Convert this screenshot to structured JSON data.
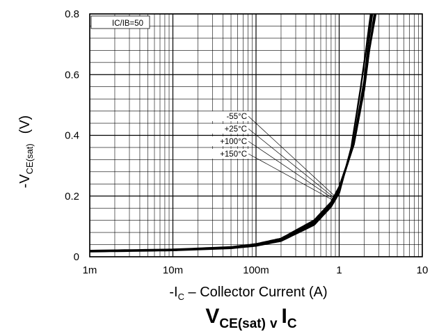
{
  "chart_data": {
    "type": "line",
    "title": "VCE(sat) v IC",
    "title_parts": {
      "main": "V",
      "sub": "CE(sat)",
      "mid": "v",
      "main2": "I",
      "sub2": "C"
    },
    "xlabel": "-IC – Collector Current (A)",
    "xlabel_parts": {
      "pre": "-I",
      "sub": "C",
      "post": " – Collector Current (A)"
    },
    "ylabel": "-VCE(sat) (V)",
    "ylabel_parts": {
      "pre": "-V",
      "sub": "CE(sat)",
      "post": "(V)"
    },
    "x_scale": "log",
    "xlim": [
      0.001,
      10
    ],
    "ylim": [
      0,
      0.8
    ],
    "x_ticks": [
      {
        "value": 0.001,
        "label": "1m"
      },
      {
        "value": 0.01,
        "label": "10m"
      },
      {
        "value": 0.1,
        "label": "100m"
      },
      {
        "value": 1,
        "label": "1"
      },
      {
        "value": 10,
        "label": "10"
      }
    ],
    "y_ticks": [
      {
        "value": 0,
        "label": "0"
      },
      {
        "value": 0.2,
        "label": "0.2"
      },
      {
        "value": 0.4,
        "label": "0.4"
      },
      {
        "value": 0.6,
        "label": "0.6"
      },
      {
        "value": 0.8,
        "label": "0.8"
      }
    ],
    "grid": true,
    "annotation": "IC/IB=50",
    "series": [
      {
        "name": "-55°C",
        "x": [
          0.001,
          0.01,
          0.05,
          0.1,
          0.2,
          0.5,
          0.8,
          1,
          1.5,
          2,
          2.3,
          2.75
        ],
        "y": [
          0.02,
          0.024,
          0.032,
          0.042,
          0.06,
          0.12,
          0.18,
          0.23,
          0.37,
          0.55,
          0.68,
          0.8
        ]
      },
      {
        "name": "+25°C",
        "x": [
          0.001,
          0.01,
          0.05,
          0.1,
          0.2,
          0.5,
          0.8,
          1,
          1.5,
          2,
          2.3,
          2.65
        ],
        "y": [
          0.019,
          0.023,
          0.03,
          0.04,
          0.057,
          0.115,
          0.175,
          0.22,
          0.37,
          0.56,
          0.68,
          0.8
        ]
      },
      {
        "name": "+100°C",
        "x": [
          0.001,
          0.01,
          0.05,
          0.1,
          0.2,
          0.5,
          0.8,
          1,
          1.5,
          2,
          2.2,
          2.5
        ],
        "y": [
          0.018,
          0.022,
          0.03,
          0.038,
          0.055,
          0.11,
          0.17,
          0.215,
          0.38,
          0.58,
          0.68,
          0.8
        ]
      },
      {
        "name": "+150°C",
        "x": [
          0.001,
          0.01,
          0.05,
          0.1,
          0.2,
          0.5,
          0.8,
          1,
          1.4,
          1.8,
          2.1,
          2.4
        ],
        "y": [
          0.017,
          0.021,
          0.028,
          0.036,
          0.052,
          0.105,
          0.165,
          0.21,
          0.36,
          0.55,
          0.68,
          0.8
        ]
      }
    ]
  }
}
